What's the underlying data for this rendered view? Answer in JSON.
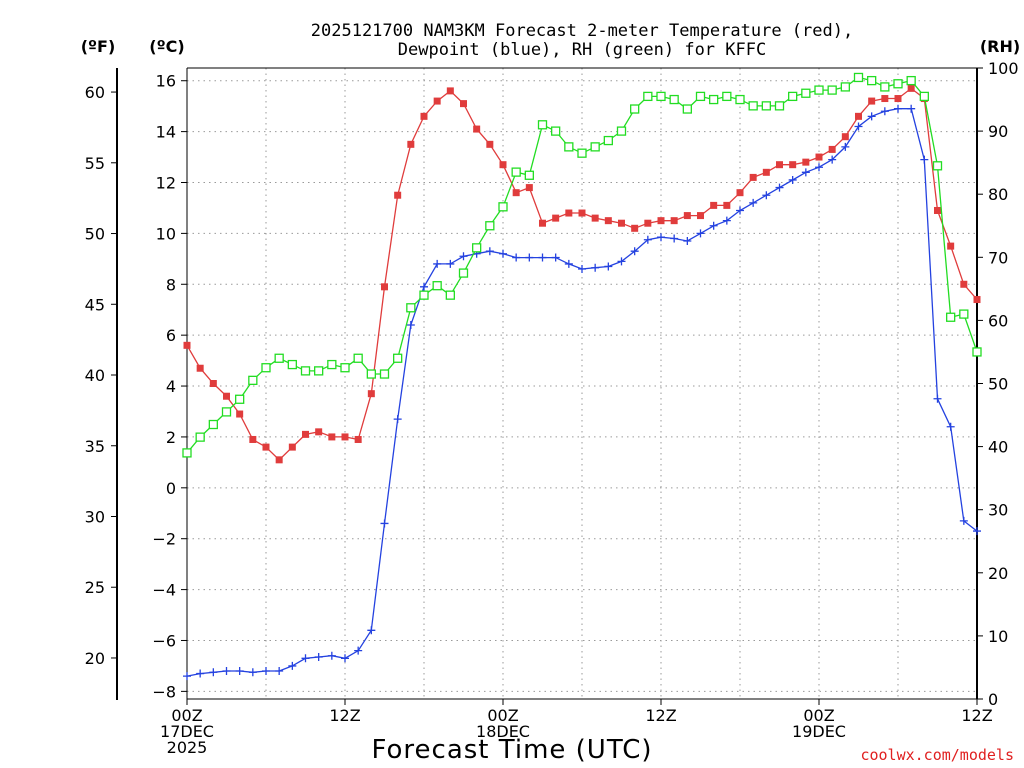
{
  "chart_data": {
    "type": "line",
    "title_line1": "2025121700 NAM3KM Forecast 2-meter Temperature (red),",
    "title_line2": "Dewpoint (blue), RH (green) for KFFC",
    "xlabel": "Forecast Time (UTC)",
    "credit": "coolwx.com/models",
    "units": {
      "fahrenheit": "(ºF)",
      "celsius": "(ºC)",
      "rh": "(RH)"
    },
    "celsius_axis": {
      "ylim": [
        -8.3,
        16.5
      ],
      "ticks": [
        "16",
        "14",
        "12",
        "10",
        "8",
        "6",
        "4",
        "2",
        "0",
        "-2",
        "-4",
        "-6",
        "-8"
      ]
    },
    "fahrenheit_axis": {
      "ylim": [
        17.1,
        61.7
      ],
      "ticks": [
        "60",
        "55",
        "50",
        "45",
        "40",
        "35",
        "30",
        "25",
        "20"
      ]
    },
    "rh_axis": {
      "ylim": [
        0,
        100
      ],
      "ticks": [
        "100",
        "90",
        "80",
        "70",
        "60",
        "50",
        "40",
        "30",
        "20",
        "10",
        "0"
      ]
    },
    "x_range_hours": [
      0,
      60
    ],
    "x_ticks": [
      {
        "hour": 0,
        "lines": [
          "00Z",
          "17DEC",
          "2025"
        ]
      },
      {
        "hour": 12,
        "lines": [
          "12Z"
        ]
      },
      {
        "hour": 24,
        "lines": [
          "00Z",
          "18DEC"
        ]
      },
      {
        "hour": 36,
        "lines": [
          "12Z"
        ]
      },
      {
        "hour": 48,
        "lines": [
          "00Z",
          "19DEC"
        ]
      },
      {
        "hour": 60,
        "lines": [
          "12Z"
        ]
      }
    ],
    "series": [
      {
        "name": "2-meter Temperature",
        "axis": "celsius",
        "color": "#e03c3c",
        "marker": "filled-square",
        "x": [
          0,
          1,
          2,
          3,
          4,
          5,
          6,
          7,
          8,
          9,
          10,
          11,
          12,
          13,
          14,
          15,
          16,
          17,
          18,
          19,
          20,
          21,
          22,
          23,
          24,
          25,
          26,
          27,
          28,
          29,
          30,
          31,
          32,
          33,
          34,
          35,
          36,
          37,
          38,
          39,
          40,
          41,
          42,
          43,
          44,
          45,
          46,
          47,
          48,
          49,
          50,
          51,
          52,
          53,
          54,
          55,
          56,
          57,
          58,
          59,
          60
        ],
        "values": [
          5.6,
          4.7,
          4.1,
          3.6,
          2.9,
          1.9,
          1.6,
          1.1,
          1.6,
          2.1,
          2.2,
          2.0,
          2.0,
          1.9,
          3.7,
          7.9,
          11.5,
          13.5,
          14.6,
          15.2,
          15.6,
          15.1,
          14.1,
          13.5,
          12.7,
          11.6,
          11.8,
          10.4,
          10.6,
          10.8,
          10.8,
          10.6,
          10.5,
          10.4,
          10.2,
          10.4,
          10.5,
          10.5,
          10.7,
          10.7,
          11.1,
          11.1,
          11.6,
          12.2,
          12.4,
          12.7,
          12.7,
          12.8,
          13.0,
          13.3,
          13.8,
          14.6,
          15.2,
          15.3,
          15.3,
          15.7,
          15.3,
          10.9,
          9.5,
          8.0,
          7.4
        ]
      },
      {
        "name": "Dewpoint",
        "axis": "celsius",
        "color": "#2442e0",
        "marker": "plus",
        "x": [
          0,
          1,
          2,
          3,
          4,
          5,
          6,
          7,
          8,
          9,
          10,
          11,
          12,
          13,
          14,
          15,
          16,
          17,
          18,
          19,
          20,
          21,
          22,
          23,
          24,
          25,
          26,
          27,
          28,
          29,
          30,
          31,
          32,
          33,
          34,
          35,
          36,
          37,
          38,
          39,
          40,
          41,
          42,
          43,
          44,
          45,
          46,
          47,
          48,
          49,
          50,
          51,
          52,
          53,
          54,
          55,
          56,
          57,
          58,
          59,
          60
        ],
        "values": [
          -7.4,
          -7.3,
          -7.25,
          -7.2,
          -7.2,
          -7.25,
          -7.2,
          -7.2,
          -7.0,
          -6.7,
          -6.65,
          -6.6,
          -6.7,
          -6.4,
          -5.6,
          -1.4,
          2.7,
          6.4,
          7.9,
          8.8,
          8.8,
          9.1,
          9.2,
          9.3,
          9.2,
          9.05,
          9.05,
          9.05,
          9.05,
          8.8,
          8.6,
          8.65,
          8.7,
          8.9,
          9.3,
          9.75,
          9.85,
          9.8,
          9.7,
          10.0,
          10.3,
          10.5,
          10.9,
          11.2,
          11.5,
          11.8,
          12.1,
          12.4,
          12.6,
          12.9,
          13.4,
          14.2,
          14.6,
          14.8,
          14.9,
          14.9,
          12.9,
          3.5,
          2.4,
          -1.3,
          -1.7
        ]
      },
      {
        "name": "RH",
        "axis": "rh",
        "color": "#22dd22",
        "marker": "open-square",
        "x": [
          0,
          1,
          2,
          3,
          4,
          5,
          6,
          7,
          8,
          9,
          10,
          11,
          12,
          13,
          14,
          15,
          16,
          17,
          18,
          19,
          20,
          21,
          22,
          23,
          24,
          25,
          26,
          27,
          28,
          29,
          30,
          31,
          32,
          33,
          34,
          35,
          36,
          37,
          38,
          39,
          40,
          41,
          42,
          43,
          44,
          45,
          46,
          47,
          48,
          49,
          50,
          51,
          52,
          53,
          54,
          55,
          56,
          57,
          58,
          59,
          60
        ],
        "values": [
          39,
          41.5,
          43.5,
          45.5,
          47.5,
          50.5,
          52.5,
          54,
          53,
          52,
          52,
          53,
          52.5,
          54,
          51.5,
          51.5,
          54,
          62,
          64,
          65.5,
          64,
          67.5,
          71.5,
          75,
          78,
          83.5,
          83,
          91,
          90,
          87.5,
          86.5,
          87.5,
          88.5,
          90,
          93.5,
          95.5,
          95.5,
          95,
          93.5,
          95.5,
          95,
          95.5,
          95,
          94,
          94,
          94,
          95.5,
          96,
          96.5,
          96.5,
          97,
          98.5,
          98,
          97,
          97.5,
          98,
          95.5,
          84.5,
          60.5,
          61,
          55
        ]
      }
    ]
  }
}
